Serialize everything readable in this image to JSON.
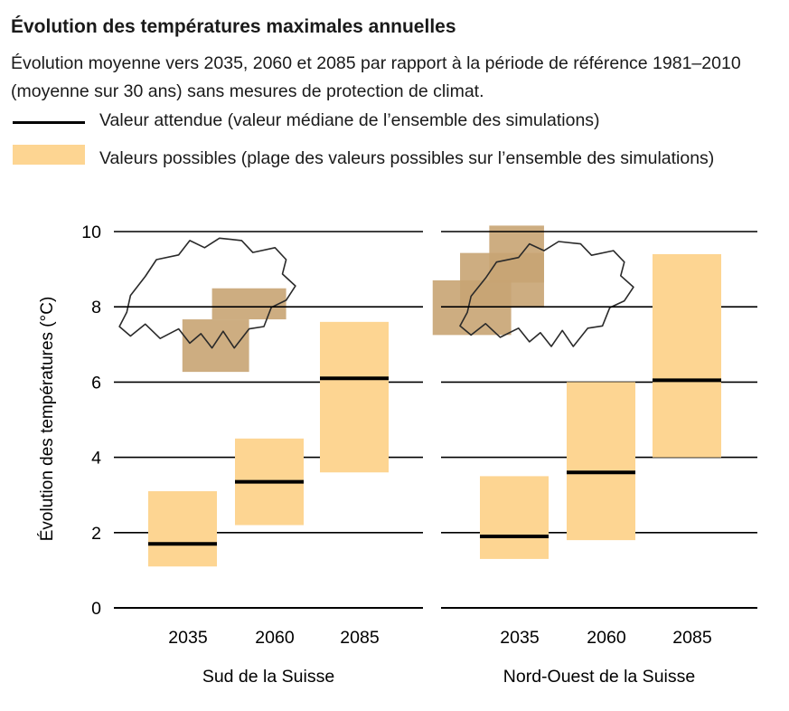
{
  "title": "Évolution des températures maximales annuelles",
  "subtitle": "Évolution moyenne vers 2035, 2060 et 2085 par rapport à la période de référence 1981–2010 (moyenne sur 30 ans) sans mesures de protection de climat.",
  "legend": {
    "median_label": "Valeur attendue (valeur médiane de l’ensemble des simulations)",
    "range_label": "Valeurs possibles (plage des valeurs possibles sur l’ensemble des simulations)"
  },
  "colors": {
    "range_fill": "#fdd592",
    "median_line": "#000000",
    "map_region": "#c8a473",
    "grid": "#000000"
  },
  "chart_data": {
    "type": "range-bar",
    "ylabel": "Évolution des températures (°C)",
    "ylim": [
      0,
      10
    ],
    "yticks": [
      0,
      2,
      4,
      6,
      8,
      10
    ],
    "grid": true,
    "panels": [
      {
        "name": "Sud de la Suisse",
        "map_icon": "switzerland-map-south-highlighted",
        "categories": [
          "2035",
          "2060",
          "2085"
        ],
        "low": [
          1.1,
          2.2,
          3.6
        ],
        "median": [
          1.7,
          3.35,
          6.1
        ],
        "high": [
          3.1,
          4.5,
          7.6
        ]
      },
      {
        "name": "Nord-Ouest de la Suisse",
        "map_icon": "switzerland-map-northwest-highlighted",
        "categories": [
          "2035",
          "2060",
          "2085"
        ],
        "low": [
          1.3,
          1.8,
          4.0
        ],
        "median": [
          1.9,
          3.6,
          6.05
        ],
        "high": [
          3.5,
          6.0,
          9.4
        ]
      }
    ]
  }
}
